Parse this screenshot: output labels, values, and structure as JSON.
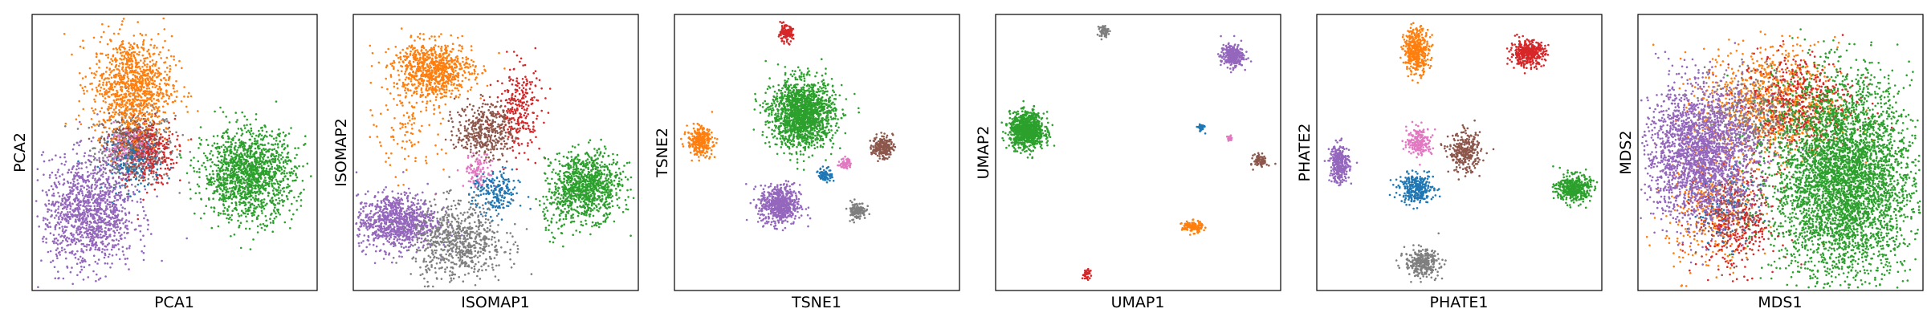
{
  "figure": {
    "background": "#ffffff"
  },
  "palette": {
    "blue": "#1f77b4",
    "orange": "#ff7f0e",
    "green": "#2ca02c",
    "red": "#d62728",
    "purple": "#9467bd",
    "brown": "#8c564b",
    "pink": "#e377c2",
    "gray": "#7f7f7f"
  },
  "chart_data": [
    {
      "type": "scatter",
      "xlabel": "PCA1",
      "ylabel": "PCA2",
      "ticks": "none",
      "grid": false,
      "xlim": [
        0,
        100
      ],
      "ylim": [
        0,
        100
      ],
      "clusters": [
        {
          "color": "#7f7f7f",
          "cx": 36,
          "cy": 52,
          "sx": 7,
          "sy": 6.5,
          "n": 500
        },
        {
          "color": "#d62728",
          "cx": 40,
          "cy": 50,
          "sx": 5,
          "sy": 6,
          "n": 320
        },
        {
          "color": "#8c564b",
          "cx": 35,
          "cy": 53,
          "sx": 5,
          "sy": 5,
          "n": 200
        },
        {
          "color": "#1f77b4",
          "cx": 35,
          "cy": 46,
          "sx": 5,
          "sy": 5,
          "n": 150
        },
        {
          "color": "#e377c2",
          "cx": 33,
          "cy": 52,
          "sx": 4,
          "sy": 4,
          "n": 80
        },
        {
          "color": "#ff7f0e",
          "cx": 35,
          "cy": 74,
          "sx": 7,
          "sy": 9,
          "n": 1000
        },
        {
          "color": "#9467bd",
          "cx": 20,
          "cy": 28,
          "sx": 8,
          "sy": 10,
          "n": 1200
        },
        {
          "color": "#2ca02c",
          "cx": 76,
          "cy": 42,
          "sx": 8,
          "sy": 8,
          "n": 1400
        }
      ]
    },
    {
      "type": "scatter",
      "xlabel": "ISOMAP1",
      "ylabel": "ISOMAP2",
      "ticks": "none",
      "grid": false,
      "xlim": [
        0,
        100
      ],
      "ylim": [
        0,
        100
      ],
      "clusters": [
        {
          "color": "#ff7f0e",
          "cx": 28,
          "cy": 80,
          "sx": 7,
          "sy": 5,
          "n": 800
        },
        {
          "color": "#ff7f0e",
          "cx": 20,
          "cy": 60,
          "sx": 6,
          "sy": 9,
          "n": 120
        },
        {
          "color": "#d62728",
          "cx": 58,
          "cy": 66,
          "sx": 4,
          "sy": 8,
          "n": 260
        },
        {
          "color": "#8c564b",
          "cx": 46,
          "cy": 58,
          "sx": 5,
          "sy": 5,
          "n": 400
        },
        {
          "color": "#e377c2",
          "cx": 44,
          "cy": 43,
          "sx": 2.5,
          "sy": 3,
          "n": 110
        },
        {
          "color": "#1f77b4",
          "cx": 50,
          "cy": 35,
          "sx": 4,
          "sy": 4,
          "n": 200
        },
        {
          "color": "#9467bd",
          "cx": 15,
          "cy": 25,
          "sx": 7,
          "sy": 5,
          "n": 900
        },
        {
          "color": "#7f7f7f",
          "cx": 37,
          "cy": 18,
          "sx": 8,
          "sy": 7,
          "n": 700
        },
        {
          "color": "#2ca02c",
          "cx": 82,
          "cy": 38,
          "sx": 6,
          "sy": 6,
          "n": 900
        },
        {
          "color": "#2ca02c",
          "cx": 72,
          "cy": 30,
          "sx": 4,
          "sy": 6,
          "n": 100
        }
      ]
    },
    {
      "type": "scatter",
      "xlabel": "TSNE1",
      "ylabel": "TSNE2",
      "ticks": "none",
      "grid": false,
      "xlim": [
        0,
        100
      ],
      "ylim": [
        0,
        100
      ],
      "clusters": [
        {
          "color": "#d62728",
          "cx": 39,
          "cy": 93,
          "sx": 1.3,
          "sy": 1.5,
          "n": 120
        },
        {
          "color": "#2ca02c",
          "cx": 45,
          "cy": 64,
          "sx": 5.5,
          "sy": 6,
          "n": 1600
        },
        {
          "color": "#ff7f0e",
          "cx": 9,
          "cy": 54,
          "sx": 2.2,
          "sy": 2.5,
          "n": 300
        },
        {
          "color": "#8c564b",
          "cx": 73,
          "cy": 52,
          "sx": 1.8,
          "sy": 2,
          "n": 200
        },
        {
          "color": "#e377c2",
          "cx": 60,
          "cy": 46,
          "sx": 1,
          "sy": 1,
          "n": 60
        },
        {
          "color": "#1f77b4",
          "cx": 53,
          "cy": 42,
          "sx": 1.2,
          "sy": 1.3,
          "n": 80
        },
        {
          "color": "#9467bd",
          "cx": 37,
          "cy": 31,
          "sx": 3.5,
          "sy": 3.6,
          "n": 600
        },
        {
          "color": "#7f7f7f",
          "cx": 64,
          "cy": 29,
          "sx": 1.6,
          "sy": 1.6,
          "n": 120
        }
      ]
    },
    {
      "type": "scatter",
      "xlabel": "UMAP1",
      "ylabel": "UMAP2",
      "ticks": "none",
      "grid": false,
      "xlim": [
        0,
        100
      ],
      "ylim": [
        0,
        100
      ],
      "clusters": [
        {
          "color": "#7f7f7f",
          "cx": 38,
          "cy": 94,
          "sx": 0.8,
          "sy": 1,
          "n": 60
        },
        {
          "color": "#9467bd",
          "cx": 83,
          "cy": 85,
          "sx": 2,
          "sy": 2,
          "n": 300
        },
        {
          "color": "#2ca02c",
          "cx": 11,
          "cy": 58,
          "sx": 3,
          "sy": 3.2,
          "n": 900
        },
        {
          "color": "#1f77b4",
          "cx": 72,
          "cy": 59,
          "sx": 0.6,
          "sy": 0.7,
          "n": 40
        },
        {
          "color": "#e377c2",
          "cx": 82,
          "cy": 55,
          "sx": 0.5,
          "sy": 0.5,
          "n": 25
        },
        {
          "color": "#8c564b",
          "cx": 93,
          "cy": 47,
          "sx": 1.2,
          "sy": 1.2,
          "n": 80
        },
        {
          "color": "#ff7f0e",
          "cx": 69,
          "cy": 23,
          "sx": 1.8,
          "sy": 1,
          "n": 140
        },
        {
          "color": "#d62728",
          "cx": 32,
          "cy": 6,
          "sx": 0.8,
          "sy": 0.9,
          "n": 40
        }
      ]
    },
    {
      "type": "scatter",
      "xlabel": "PHATE1",
      "ylabel": "PHATE2",
      "ticks": "none",
      "grid": false,
      "xlim": [
        0,
        100
      ],
      "ylim": [
        0,
        100
      ],
      "clusters": [
        {
          "color": "#ff7f0e",
          "cx": 35,
          "cy": 87,
          "sx": 2.2,
          "sy": 4,
          "n": 400
        },
        {
          "color": "#d62728",
          "cx": 74,
          "cy": 86,
          "sx": 3,
          "sy": 2.2,
          "n": 400
        },
        {
          "color": "#e377c2",
          "cx": 36,
          "cy": 54,
          "sx": 2.2,
          "sy": 2.5,
          "n": 200
        },
        {
          "color": "#8c564b",
          "cx": 52,
          "cy": 50,
          "sx": 2.8,
          "sy": 3.5,
          "n": 300
        },
        {
          "color": "#9467bd",
          "cx": 8,
          "cy": 46,
          "sx": 1.7,
          "sy": 3.5,
          "n": 300
        },
        {
          "color": "#1f77b4",
          "cx": 35,
          "cy": 37,
          "sx": 3,
          "sy": 2.5,
          "n": 300
        },
        {
          "color": "#2ca02c",
          "cx": 90,
          "cy": 37,
          "sx": 3,
          "sy": 2.5,
          "n": 400
        },
        {
          "color": "#7f7f7f",
          "cx": 37,
          "cy": 10,
          "sx": 3,
          "sy": 2.5,
          "n": 300
        }
      ]
    },
    {
      "type": "scatter",
      "xlabel": "MDS1",
      "ylabel": "MDS2",
      "ticks": "none",
      "grid": false,
      "xlim": [
        0,
        100
      ],
      "ylim": [
        0,
        100
      ],
      "clusters": [
        {
          "color": "#ff7f0e",
          "cx": 46,
          "cy": 68,
          "sx": 12,
          "sy": 10,
          "n": 900
        },
        {
          "color": "#d62728",
          "cx": 56,
          "cy": 68,
          "sx": 10,
          "sy": 9,
          "n": 500
        },
        {
          "color": "#7f7f7f",
          "cx": 40,
          "cy": 64,
          "sx": 8,
          "sy": 8,
          "n": 300
        },
        {
          "color": "#ff7f0e",
          "cx": 26,
          "cy": 30,
          "sx": 8,
          "sy": 12,
          "n": 400
        },
        {
          "color": "#d62728",
          "cx": 35,
          "cy": 25,
          "sx": 7,
          "sy": 9,
          "n": 350
        },
        {
          "color": "#8c564b",
          "cx": 32,
          "cy": 28,
          "sx": 6,
          "sy": 8,
          "n": 150
        },
        {
          "color": "#1f77b4",
          "cx": 30,
          "cy": 30,
          "sx": 6,
          "sy": 7,
          "n": 100
        },
        {
          "color": "#9467bd",
          "cx": 22,
          "cy": 50,
          "sx": 10,
          "sy": 12,
          "n": 2200
        },
        {
          "color": "#2ca02c",
          "cx": 72,
          "cy": 40,
          "sx": 12,
          "sy": 18,
          "n": 4200
        }
      ]
    }
  ]
}
